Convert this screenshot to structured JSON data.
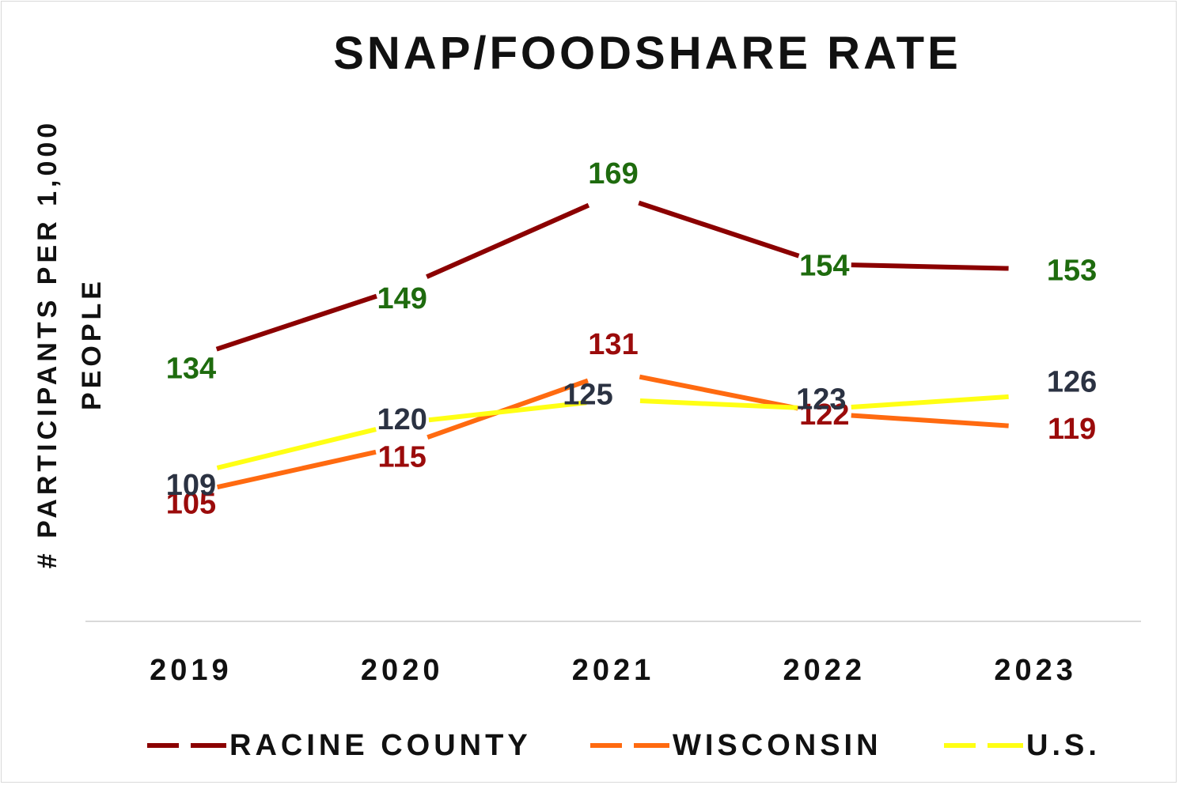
{
  "chart_data": {
    "type": "line",
    "title": "SNAP/FOODSHARE RATE",
    "xlabel": "",
    "ylabel": "# PARTICIPANTS PER 1,000 PEOPLE",
    "categories": [
      "2019",
      "2020",
      "2021",
      "2022",
      "2023"
    ],
    "ylim": [
      80,
      180
    ],
    "grid": false,
    "legend_position": "bottom",
    "series": [
      {
        "name": "RACINE COUNTY",
        "values": [
          134,
          149,
          169,
          154,
          153
        ],
        "color": "#8B0000",
        "label_color": "#1E6B0E"
      },
      {
        "name": "WISCONSIN",
        "values": [
          105,
          115,
          131,
          122,
          119
        ],
        "color": "#FF6A10",
        "label_color": "#9B0B0B"
      },
      {
        "name": "U.S.",
        "values": [
          109,
          120,
          125,
          123,
          126
        ],
        "color": "#FFFF14",
        "label_color": "#2B3242"
      }
    ]
  }
}
